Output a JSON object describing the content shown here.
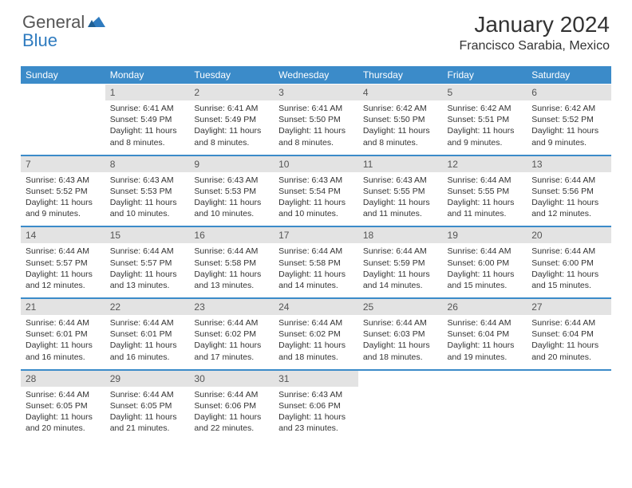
{
  "logo": {
    "general": "General",
    "blue": "Blue"
  },
  "title": "January 2024",
  "location": "Francisco Sarabia, Mexico",
  "colors": {
    "header_bg": "#3b8bc9",
    "daynum_bg": "#e3e3e3",
    "text": "#333333",
    "logo_gray": "#555555",
    "logo_blue": "#2f7bbf"
  },
  "dow": [
    "Sunday",
    "Monday",
    "Tuesday",
    "Wednesday",
    "Thursday",
    "Friday",
    "Saturday"
  ],
  "weeks": [
    {
      "nums": [
        "",
        "1",
        "2",
        "3",
        "4",
        "5",
        "6"
      ],
      "info": [
        "",
        "Sunrise: 6:41 AM\nSunset: 5:49 PM\nDaylight: 11 hours and 8 minutes.",
        "Sunrise: 6:41 AM\nSunset: 5:49 PM\nDaylight: 11 hours and 8 minutes.",
        "Sunrise: 6:41 AM\nSunset: 5:50 PM\nDaylight: 11 hours and 8 minutes.",
        "Sunrise: 6:42 AM\nSunset: 5:50 PM\nDaylight: 11 hours and 8 minutes.",
        "Sunrise: 6:42 AM\nSunset: 5:51 PM\nDaylight: 11 hours and 9 minutes.",
        "Sunrise: 6:42 AM\nSunset: 5:52 PM\nDaylight: 11 hours and 9 minutes."
      ]
    },
    {
      "nums": [
        "7",
        "8",
        "9",
        "10",
        "11",
        "12",
        "13"
      ],
      "info": [
        "Sunrise: 6:43 AM\nSunset: 5:52 PM\nDaylight: 11 hours and 9 minutes.",
        "Sunrise: 6:43 AM\nSunset: 5:53 PM\nDaylight: 11 hours and 10 minutes.",
        "Sunrise: 6:43 AM\nSunset: 5:53 PM\nDaylight: 11 hours and 10 minutes.",
        "Sunrise: 6:43 AM\nSunset: 5:54 PM\nDaylight: 11 hours and 10 minutes.",
        "Sunrise: 6:43 AM\nSunset: 5:55 PM\nDaylight: 11 hours and 11 minutes.",
        "Sunrise: 6:44 AM\nSunset: 5:55 PM\nDaylight: 11 hours and 11 minutes.",
        "Sunrise: 6:44 AM\nSunset: 5:56 PM\nDaylight: 11 hours and 12 minutes."
      ]
    },
    {
      "nums": [
        "14",
        "15",
        "16",
        "17",
        "18",
        "19",
        "20"
      ],
      "info": [
        "Sunrise: 6:44 AM\nSunset: 5:57 PM\nDaylight: 11 hours and 12 minutes.",
        "Sunrise: 6:44 AM\nSunset: 5:57 PM\nDaylight: 11 hours and 13 minutes.",
        "Sunrise: 6:44 AM\nSunset: 5:58 PM\nDaylight: 11 hours and 13 minutes.",
        "Sunrise: 6:44 AM\nSunset: 5:58 PM\nDaylight: 11 hours and 14 minutes.",
        "Sunrise: 6:44 AM\nSunset: 5:59 PM\nDaylight: 11 hours and 14 minutes.",
        "Sunrise: 6:44 AM\nSunset: 6:00 PM\nDaylight: 11 hours and 15 minutes.",
        "Sunrise: 6:44 AM\nSunset: 6:00 PM\nDaylight: 11 hours and 15 minutes."
      ]
    },
    {
      "nums": [
        "21",
        "22",
        "23",
        "24",
        "25",
        "26",
        "27"
      ],
      "info": [
        "Sunrise: 6:44 AM\nSunset: 6:01 PM\nDaylight: 11 hours and 16 minutes.",
        "Sunrise: 6:44 AM\nSunset: 6:01 PM\nDaylight: 11 hours and 16 minutes.",
        "Sunrise: 6:44 AM\nSunset: 6:02 PM\nDaylight: 11 hours and 17 minutes.",
        "Sunrise: 6:44 AM\nSunset: 6:02 PM\nDaylight: 11 hours and 18 minutes.",
        "Sunrise: 6:44 AM\nSunset: 6:03 PM\nDaylight: 11 hours and 18 minutes.",
        "Sunrise: 6:44 AM\nSunset: 6:04 PM\nDaylight: 11 hours and 19 minutes.",
        "Sunrise: 6:44 AM\nSunset: 6:04 PM\nDaylight: 11 hours and 20 minutes."
      ]
    },
    {
      "nums": [
        "28",
        "29",
        "30",
        "31",
        "",
        "",
        ""
      ],
      "info": [
        "Sunrise: 6:44 AM\nSunset: 6:05 PM\nDaylight: 11 hours and 20 minutes.",
        "Sunrise: 6:44 AM\nSunset: 6:05 PM\nDaylight: 11 hours and 21 minutes.",
        "Sunrise: 6:44 AM\nSunset: 6:06 PM\nDaylight: 11 hours and 22 minutes.",
        "Sunrise: 6:43 AM\nSunset: 6:06 PM\nDaylight: 11 hours and 23 minutes.",
        "",
        "",
        ""
      ]
    }
  ]
}
